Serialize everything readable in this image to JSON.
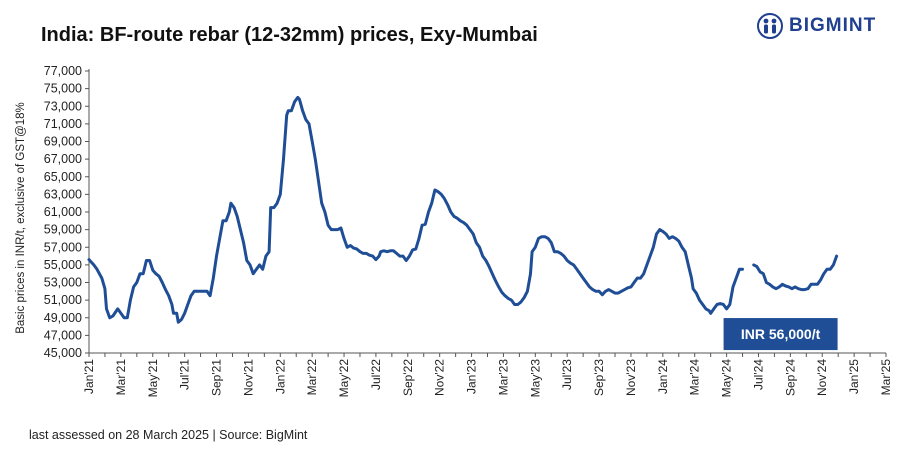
{
  "brand": {
    "name": "BIGMINT",
    "logo_icon": "bigmint-people-icon",
    "color": "#1f3f8f"
  },
  "footer": "last assessed on 28 March 2025 | Source: BigMint",
  "chart_data": {
    "type": "line",
    "title": "India: BF-route rebar (12-32mm) prices, Exy-Mumbai",
    "ylabel": "Basic prices in INR/t, exclusive of GST@18%",
    "xlabel": "",
    "ylim": [
      45000,
      77000
    ],
    "yticks": [
      "45,000",
      "47,000",
      "49,000",
      "51,000",
      "53,000",
      "55,000",
      "57,000",
      "59,000",
      "61,000",
      "63,000",
      "65,000",
      "67,000",
      "69,000",
      "71,000",
      "73,000",
      "75,000",
      "77,000"
    ],
    "categories": [
      "Jan'21",
      "Feb'21",
      "Mar'21",
      "Apr'21",
      "May'21",
      "Jun'21",
      "Jul'21",
      "Aug'21",
      "Sep'21",
      "Oct'21",
      "Nov'21",
      "Dec'21",
      "Jan'22",
      "Feb'22",
      "Mar'22",
      "Apr'22",
      "May'22",
      "Jun'22",
      "Jul'22",
      "Aug'22",
      "Sep'22",
      "Oct'22",
      "Nov'22",
      "Dec'22",
      "Jan'23",
      "Feb'23",
      "Mar'23",
      "Apr'23",
      "May'23",
      "Jun'23",
      "Jul'23",
      "Aug'23",
      "Sep'23",
      "Oct'23",
      "Nov'23",
      "Dec'23",
      "Jan'24",
      "Feb'24",
      "Mar'24",
      "Apr'24",
      "May'24",
      "Jun'24",
      "Jul'24",
      "Aug'24",
      "Sep'24",
      "Oct'24",
      "Nov'24",
      "Dec'24",
      "Jan'25",
      "Feb'25",
      "Mar'25"
    ],
    "series_color": "#1f4e96",
    "grid": false,
    "series": [
      {
        "segments": [
          [
            [
              0,
              55600
            ],
            [
              0.3,
              55000
            ],
            [
              0.5,
              54500
            ],
            [
              0.8,
              53500
            ],
            [
              1,
              52300
            ],
            [
              1.1,
              50000
            ],
            [
              1.3,
              49000
            ],
            [
              1.5,
              49200
            ],
            [
              1.8,
              50000
            ],
            [
              2,
              49500
            ],
            [
              2.2,
              49000
            ],
            [
              2.4,
              49000
            ],
            [
              2.6,
              51000
            ],
            [
              2.8,
              52500
            ],
            [
              3,
              53000
            ],
            [
              3.2,
              54000
            ],
            [
              3.4,
              54000
            ],
            [
              3.6,
              55500
            ],
            [
              3.8,
              55500
            ],
            [
              4,
              54400
            ],
            [
              4.2,
              54000
            ],
            [
              4.4,
              53700
            ],
            [
              4.6,
              53000
            ],
            [
              4.8,
              52200
            ],
            [
              5,
              51500
            ],
            [
              5.2,
              50500
            ],
            [
              5.3,
              49500
            ],
            [
              5.5,
              49500
            ],
            [
              5.6,
              48500
            ],
            [
              5.8,
              48800
            ],
            [
              6,
              49500
            ],
            [
              6.2,
              50500
            ],
            [
              6.4,
              51500
            ],
            [
              6.6,
              52000
            ],
            [
              6.8,
              52000
            ],
            [
              7,
              52000
            ],
            [
              7.2,
              52000
            ],
            [
              7.4,
              52000
            ],
            [
              7.6,
              51500
            ],
            [
              7.8,
              53500
            ],
            [
              8,
              56000
            ],
            [
              8.2,
              58000
            ],
            [
              8.4,
              60000
            ],
            [
              8.6,
              60000
            ],
            [
              8.8,
              61000
            ],
            [
              8.9,
              62000
            ],
            [
              9.1,
              61500
            ],
            [
              9.3,
              60500
            ],
            [
              9.5,
              59000
            ],
            [
              9.7,
              57500
            ],
            [
              9.9,
              55500
            ],
            [
              10.1,
              55000
            ],
            [
              10.3,
              54000
            ],
            [
              10.5,
              54500
            ],
            [
              10.7,
              55000
            ],
            [
              10.9,
              54500
            ],
            [
              11.1,
              56000
            ],
            [
              11.3,
              56500
            ],
            [
              11.4,
              61500
            ],
            [
              11.6,
              61500
            ],
            [
              11.8,
              62000
            ],
            [
              12,
              63000
            ],
            [
              12.2,
              67000
            ],
            [
              12.4,
              72000
            ],
            [
              12.5,
              72500
            ],
            [
              12.7,
              72500
            ],
            [
              12.9,
              73500
            ],
            [
              13.1,
              74000
            ],
            [
              13.2,
              73800
            ],
            [
              13.4,
              72500
            ],
            [
              13.6,
              71500
            ],
            [
              13.8,
              71000
            ],
            [
              14,
              69000
            ],
            [
              14.2,
              67000
            ],
            [
              14.4,
              64500
            ],
            [
              14.6,
              62000
            ],
            [
              14.8,
              61000
            ],
            [
              15,
              59500
            ],
            [
              15.2,
              59000
            ],
            [
              15.4,
              59000
            ],
            [
              15.6,
              59000
            ],
            [
              15.8,
              59200
            ],
            [
              16,
              58000
            ],
            [
              16.2,
              57000
            ],
            [
              16.4,
              57200
            ],
            [
              16.6,
              56900
            ],
            [
              16.8,
              56800
            ],
            [
              17,
              56500
            ],
            [
              17.2,
              56300
            ],
            [
              17.4,
              56300
            ],
            [
              17.6,
              56100
            ],
            [
              17.8,
              56000
            ],
            [
              18,
              55600
            ],
            [
              18.2,
              56000
            ],
            [
              18.3,
              56500
            ],
            [
              18.5,
              56600
            ],
            [
              18.7,
              56500
            ],
            [
              18.9,
              56600
            ],
            [
              19.1,
              56600
            ],
            [
              19.3,
              56300
            ],
            [
              19.5,
              56000
            ],
            [
              19.7,
              56000
            ],
            [
              19.9,
              55500
            ],
            [
              20.1,
              56000
            ],
            [
              20.3,
              56700
            ],
            [
              20.5,
              56800
            ],
            [
              20.7,
              58000
            ],
            [
              20.9,
              59500
            ],
            [
              21.1,
              59600
            ],
            [
              21.3,
              61000
            ],
            [
              21.5,
              62000
            ],
            [
              21.7,
              63500
            ],
            [
              21.9,
              63300
            ],
            [
              22.1,
              63000
            ],
            [
              22.3,
              62500
            ],
            [
              22.5,
              61800
            ],
            [
              22.7,
              61000
            ],
            [
              22.9,
              60500
            ],
            [
              23.1,
              60300
            ],
            [
              23.3,
              60000
            ],
            [
              23.5,
              59800
            ],
            [
              23.7,
              59500
            ],
            [
              23.9,
              59000
            ],
            [
              24.1,
              58500
            ],
            [
              24.3,
              57500
            ],
            [
              24.5,
              57000
            ],
            [
              24.7,
              56000
            ],
            [
              24.9,
              55500
            ],
            [
              25.1,
              54800
            ],
            [
              25.3,
              54000
            ],
            [
              25.5,
              53200
            ],
            [
              25.7,
              52500
            ],
            [
              25.9,
              51900
            ],
            [
              26.1,
              51500
            ],
            [
              26.3,
              51200
            ],
            [
              26.5,
              51000
            ],
            [
              26.7,
              50500
            ],
            [
              26.9,
              50500
            ],
            [
              27.1,
              50800
            ],
            [
              27.3,
              51300
            ],
            [
              27.5,
              52000
            ],
            [
              27.7,
              54000
            ],
            [
              27.8,
              56500
            ],
            [
              28,
              57000
            ],
            [
              28.2,
              58000
            ],
            [
              28.4,
              58200
            ],
            [
              28.6,
              58200
            ],
            [
              28.8,
              58000
            ],
            [
              29,
              57500
            ],
            [
              29.2,
              56500
            ],
            [
              29.4,
              56500
            ],
            [
              29.6,
              56300
            ],
            [
              29.8,
              56000
            ],
            [
              30,
              55500
            ],
            [
              30.2,
              55200
            ],
            [
              30.4,
              55000
            ],
            [
              30.6,
              54500
            ],
            [
              30.8,
              54000
            ],
            [
              31,
              53500
            ],
            [
              31.2,
              53000
            ],
            [
              31.4,
              52500
            ],
            [
              31.6,
              52200
            ],
            [
              31.8,
              52000
            ],
            [
              32,
              52000
            ],
            [
              32.2,
              51600
            ],
            [
              32.4,
              52000
            ],
            [
              32.6,
              52200
            ],
            [
              32.8,
              52000
            ],
            [
              33,
              51800
            ],
            [
              33.2,
              51800
            ],
            [
              33.4,
              52000
            ],
            [
              33.6,
              52200
            ],
            [
              33.8,
              52400
            ],
            [
              34,
              52500
            ],
            [
              34.2,
              53000
            ],
            [
              34.4,
              53500
            ],
            [
              34.6,
              53500
            ],
            [
              34.8,
              54000
            ],
            [
              35,
              55000
            ],
            [
              35.2,
              56000
            ],
            [
              35.4,
              57000
            ],
            [
              35.6,
              58500
            ],
            [
              35.8,
              59000
            ],
            [
              36,
              58800
            ],
            [
              36.2,
              58500
            ],
            [
              36.4,
              58000
            ],
            [
              36.6,
              58200
            ],
            [
              36.8,
              58000
            ],
            [
              37,
              57700
            ],
            [
              37.2,
              57000
            ],
            [
              37.4,
              56500
            ],
            [
              37.6,
              55000
            ],
            [
              37.8,
              53500
            ],
            [
              37.9,
              52300
            ],
            [
              38.1,
              51800
            ],
            [
              38.3,
              51000
            ],
            [
              38.5,
              50500
            ],
            [
              38.7,
              50000
            ],
            [
              38.9,
              49800
            ],
            [
              39,
              49500
            ],
            [
              39.2,
              50000
            ],
            [
              39.4,
              50500
            ],
            [
              39.6,
              50600
            ],
            [
              39.8,
              50500
            ],
            [
              40,
              50000
            ],
            [
              40.2,
              50500
            ],
            [
              40.4,
              52500
            ],
            [
              40.6,
              53500
            ],
            [
              40.8,
              54500
            ],
            [
              41,
              54500
            ]
          ],
          [
            [
              41.7,
              55000
            ],
            [
              41.9,
              54800
            ],
            [
              42.1,
              54200
            ],
            [
              42.3,
              54000
            ],
            [
              42.5,
              53000
            ],
            [
              42.7,
              52800
            ],
            [
              42.9,
              52500
            ],
            [
              43.1,
              52300
            ],
            [
              43.3,
              52500
            ],
            [
              43.5,
              52800
            ],
            [
              43.7,
              52600
            ],
            [
              43.9,
              52500
            ],
            [
              44.1,
              52300
            ],
            [
              44.3,
              52500
            ],
            [
              44.5,
              52300
            ],
            [
              44.7,
              52200
            ],
            [
              44.9,
              52200
            ],
            [
              45.1,
              52300
            ],
            [
              45.3,
              52800
            ],
            [
              45.5,
              52800
            ],
            [
              45.7,
              52800
            ],
            [
              45.9,
              53300
            ],
            [
              46.1,
              54000
            ],
            [
              46.3,
              54500
            ],
            [
              46.5,
              54500
            ],
            [
              46.7,
              55000
            ],
            [
              46.9,
              56000
            ]
          ]
        ]
      }
    ],
    "annotation": {
      "text": "INR 56,000/t",
      "bg": "#1f4e96",
      "color": "#ffffff"
    }
  }
}
